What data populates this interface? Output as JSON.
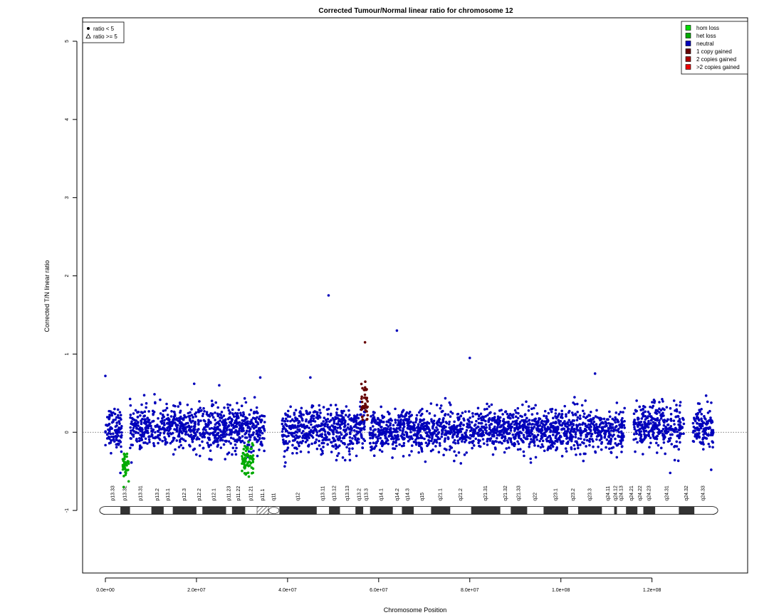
{
  "chart_data": {
    "type": "scatter",
    "title": "Corrected Tumour/Normal linear ratio for chromosome  12",
    "xlabel": "Chromosome Position",
    "ylabel": "Corrected T/N linear ratio",
    "xlim": [
      -5000000,
      141000000
    ],
    "ylim": [
      -1.8,
      5.3
    ],
    "x_ticks": [
      {
        "value": 0,
        "label": "0.0e+00"
      },
      {
        "value": 20000000,
        "label": "2.0e+07"
      },
      {
        "value": 40000000,
        "label": "4.0e+07"
      },
      {
        "value": 60000000,
        "label": "6.0e+07"
      },
      {
        "value": 80000000,
        "label": "8.0e+07"
      },
      {
        "value": 100000000,
        "label": "1.0e+08"
      },
      {
        "value": 120000000,
        "label": "1.2e+08"
      }
    ],
    "y_ticks": [
      {
        "value": -1,
        "label": "-1"
      },
      {
        "value": 0,
        "label": "0"
      },
      {
        "value": 1,
        "label": "1"
      },
      {
        "value": 2,
        "label": "2"
      },
      {
        "value": 3,
        "label": "3"
      },
      {
        "value": 4,
        "label": "4"
      },
      {
        "value": 5,
        "label": "5"
      }
    ],
    "reference_line": 0,
    "shape_legend": {
      "placement": "top-left",
      "entries": [
        {
          "symbol": "circle",
          "label": "ratio < 5"
        },
        {
          "symbol": "triangle",
          "label": "ratio >= 5"
        }
      ]
    },
    "legend": {
      "placement": "top-right",
      "entries": [
        {
          "label": "hom loss",
          "color": "#00dd00"
        },
        {
          "label": "het loss",
          "color": "#00aa00"
        },
        {
          "label": "neutral",
          "color": "#0000bb"
        },
        {
          "label": "1 copy gained",
          "color": "#660000"
        },
        {
          "label": "2 copies gained",
          "color": "#aa0000"
        },
        {
          "label": ">2 copies gained",
          "color": "#ee0000"
        }
      ]
    },
    "series": [
      {
        "name": "neutral",
        "color": "#0000bb",
        "segments": [
          {
            "x": [
              0,
              3600000
            ],
            "center": 0.05,
            "spread": 0.22
          },
          {
            "x": [
              5400000,
              35000000
            ],
            "center": 0.05,
            "spread": 0.23
          },
          {
            "x": [
              38800000,
              56000000
            ],
            "center": 0.02,
            "spread": 0.24
          },
          {
            "x": [
              56000000,
              57000000
            ],
            "center": 0.12,
            "spread": 0.25
          },
          {
            "x": [
              58000000,
              87000000
            ],
            "center": 0.02,
            "spread": 0.22
          },
          {
            "x": [
              87000000,
              114000000
            ],
            "center": 0.03,
            "spread": 0.22
          },
          {
            "x": [
              116000000,
              127000000
            ],
            "center": 0.08,
            "spread": 0.24
          },
          {
            "x": [
              129000000,
              133500000
            ],
            "center": 0.05,
            "spread": 0.22
          }
        ],
        "outliers": [
          {
            "x": 49000000,
            "y": 1.75
          },
          {
            "x": 64000000,
            "y": 1.3
          },
          {
            "x": 80000000,
            "y": 0.95
          },
          {
            "x": 107500000,
            "y": 0.75
          },
          {
            "x": 0,
            "y": 0.72
          },
          {
            "x": 3300000,
            "y": -0.52
          },
          {
            "x": 133000000,
            "y": -0.48
          },
          {
            "x": 124000000,
            "y": -0.52
          },
          {
            "x": 34000000,
            "y": 0.7
          },
          {
            "x": 19500000,
            "y": 0.62
          },
          {
            "x": 25000000,
            "y": 0.6
          },
          {
            "x": 45000000,
            "y": 0.7
          }
        ]
      },
      {
        "name": "het loss",
        "color": "#00aa00",
        "segments": [
          {
            "x": [
              3800000,
              5200000
            ],
            "center": -0.42,
            "spread": 0.15
          },
          {
            "x": [
              30000000,
              32500000
            ],
            "center": -0.35,
            "spread": 0.18
          }
        ],
        "outliers": []
      },
      {
        "name": "1 copy gained",
        "color": "#660000",
        "segments": [
          {
            "x": [
              56200000,
              57600000
            ],
            "center": 0.4,
            "spread": 0.22
          }
        ],
        "outliers": [
          {
            "x": 57000000,
            "y": 1.15
          }
        ]
      }
    ],
    "ideogram": {
      "y": -1,
      "bands": [
        {
          "start": 0,
          "end": 3300000,
          "name": "p13.33",
          "stain": "gneg"
        },
        {
          "start": 3300000,
          "end": 5400000,
          "name": "p13.32",
          "stain": "gpos"
        },
        {
          "start": 5400000,
          "end": 10100000,
          "name": "p13.31",
          "stain": "gneg"
        },
        {
          "start": 10100000,
          "end": 12800000,
          "name": "p13.2",
          "stain": "gpos"
        },
        {
          "start": 12800000,
          "end": 14800000,
          "name": "p13.1",
          "stain": "gneg"
        },
        {
          "start": 14800000,
          "end": 20000000,
          "name": "p12.3",
          "stain": "gpos"
        },
        {
          "start": 20000000,
          "end": 21300000,
          "name": "p12.2",
          "stain": "gneg"
        },
        {
          "start": 21300000,
          "end": 26500000,
          "name": "p12.1",
          "stain": "gpos"
        },
        {
          "start": 26500000,
          "end": 27800000,
          "name": "p11.23",
          "stain": "gneg"
        },
        {
          "start": 27800000,
          "end": 30700000,
          "name": "p11.22",
          "stain": "gpos"
        },
        {
          "start": 30700000,
          "end": 33300000,
          "name": "p11.21",
          "stain": "gneg"
        },
        {
          "start": 33300000,
          "end": 35800000,
          "name": "p11.1",
          "stain": "hatch"
        },
        {
          "start": 35800000,
          "end": 38200000,
          "name": "q11",
          "stain": "cen"
        },
        {
          "start": 38200000,
          "end": 46400000,
          "name": "q12",
          "stain": "gpos"
        },
        {
          "start": 46400000,
          "end": 49100000,
          "name": "q13.11",
          "stain": "gneg"
        },
        {
          "start": 49100000,
          "end": 51500000,
          "name": "q13.12",
          "stain": "gpos"
        },
        {
          "start": 51500000,
          "end": 54900000,
          "name": "q13.13",
          "stain": "gneg"
        },
        {
          "start": 54900000,
          "end": 56600000,
          "name": "q13.2",
          "stain": "gpos"
        },
        {
          "start": 56600000,
          "end": 58100000,
          "name": "q13.3",
          "stain": "gneg"
        },
        {
          "start": 58100000,
          "end": 63100000,
          "name": "q14.1",
          "stain": "gpos"
        },
        {
          "start": 63100000,
          "end": 65100000,
          "name": "q14.2",
          "stain": "gneg"
        },
        {
          "start": 65100000,
          "end": 67700000,
          "name": "q14.3",
          "stain": "gpos"
        },
        {
          "start": 67700000,
          "end": 71500000,
          "name": "q15",
          "stain": "gneg"
        },
        {
          "start": 71500000,
          "end": 75700000,
          "name": "q21.1",
          "stain": "gpos"
        },
        {
          "start": 75700000,
          "end": 80300000,
          "name": "q21.2",
          "stain": "gneg"
        },
        {
          "start": 80300000,
          "end": 86700000,
          "name": "q21.31",
          "stain": "gpos"
        },
        {
          "start": 86700000,
          "end": 89000000,
          "name": "q21.32",
          "stain": "gneg"
        },
        {
          "start": 89000000,
          "end": 92600000,
          "name": "q21.33",
          "stain": "gpos"
        },
        {
          "start": 92600000,
          "end": 96200000,
          "name": "q22",
          "stain": "gneg"
        },
        {
          "start": 96200000,
          "end": 101600000,
          "name": "q23.1",
          "stain": "gpos"
        },
        {
          "start": 101600000,
          "end": 103800000,
          "name": "q23.2",
          "stain": "gneg"
        },
        {
          "start": 103800000,
          "end": 109000000,
          "name": "q23.3",
          "stain": "gpos"
        },
        {
          "start": 109000000,
          "end": 111700000,
          "name": "q24.11",
          "stain": "gneg"
        },
        {
          "start": 111700000,
          "end": 112300000,
          "name": "q24.12",
          "stain": "gpos"
        },
        {
          "start": 112300000,
          "end": 114300000,
          "name": "q24.13",
          "stain": "gneg"
        },
        {
          "start": 114300000,
          "end": 116800000,
          "name": "q24.21",
          "stain": "gpos"
        },
        {
          "start": 116800000,
          "end": 118100000,
          "name": "q24.22",
          "stain": "gneg"
        },
        {
          "start": 118100000,
          "end": 120700000,
          "name": "q24.23",
          "stain": "gpos"
        },
        {
          "start": 120700000,
          "end": 125900000,
          "name": "q24.31",
          "stain": "gneg"
        },
        {
          "start": 125900000,
          "end": 129300000,
          "name": "q24.32",
          "stain": "gpos"
        },
        {
          "start": 129300000,
          "end": 133200000,
          "name": "q24.33",
          "stain": "gneg"
        }
      ]
    }
  }
}
